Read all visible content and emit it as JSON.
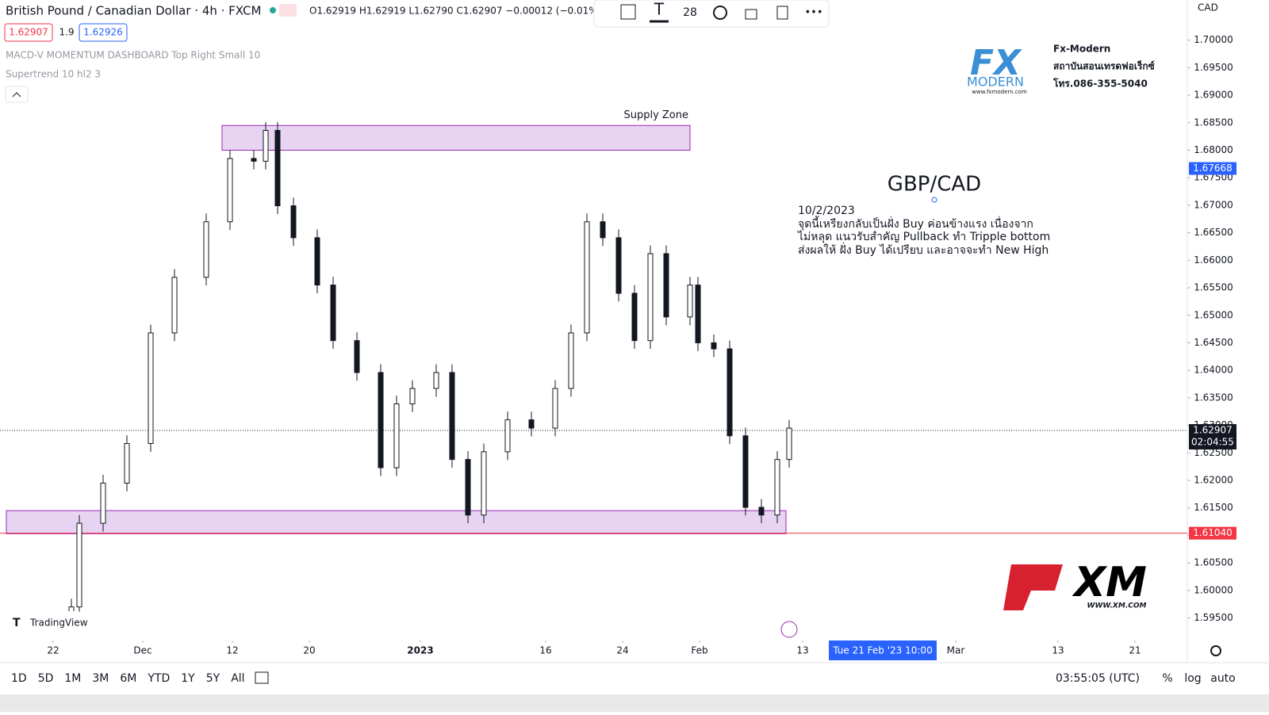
{
  "header": {
    "symbol": "British Pound / Canadian Dollar · 4h · FXCM",
    "ohlc": "O1.62919 H1.62919 L1.62790 C1.62907 −0.00012 (−0.01%)",
    "bid": "1.62907",
    "spread": "1.9",
    "ask": "1.62926",
    "currency": "CAD"
  },
  "toolbar": {
    "font_size": "28"
  },
  "indicators": [
    "MACD-V MOMENTUM DASHBOARD Top Right Small 10",
    "Supertrend 10 hl2 3"
  ],
  "logos": {
    "fx_name": "Fx-Modern",
    "fx_line1": "สถาบันสอนเทรดฟอเร็กซ์",
    "fx_line2": "โทร.086-355-5040",
    "fx_brand": "MODERN",
    "fx_site": "www.fxmodern.com",
    "xm": "XM",
    "xm_site": "WWW.XM.COM",
    "tradingview": "TradingView"
  },
  "annotation": {
    "title": "GBP/CAD",
    "lines": [
      "10/2/2023",
      "จุดนี้เหรียงกลับเป็นฝั่ง Buy ค่อนข้างแรง เนื่องจาก",
      "ไม่หลุด แนวรับสำคัญ Pullback ทำ Tripple bottom",
      "ส่งผลให้ ฝั่ง Buy ได้เปรียบ และอาจจะทำ New High"
    ]
  },
  "crosshair": "Tue 21 Feb '23 10:00",
  "bottom": {
    "ranges": [
      "1D",
      "5D",
      "1M",
      "3M",
      "6M",
      "YTD",
      "1Y",
      "5Y",
      "All"
    ],
    "clock": "03:55:05 (UTC)",
    "percent": "%",
    "log": "log",
    "auto": "auto"
  },
  "chart_data": {
    "type": "candlestick",
    "xlim": [
      0,
      149.7
    ],
    "ylim": [
      1.5909,
      1.7073
    ],
    "grid": false,
    "xticks": [
      {
        "value": 6.7,
        "label": "22"
      },
      {
        "value": 18,
        "label": "Dec"
      },
      {
        "value": 29.3,
        "label": "12"
      },
      {
        "value": 39,
        "label": "20"
      },
      {
        "value": 53,
        "label": "2023"
      },
      {
        "value": 68.8,
        "label": "16"
      },
      {
        "value": 78.5,
        "label": "24"
      },
      {
        "value": 88.2,
        "label": "Feb"
      },
      {
        "value": 101.2,
        "label": "13"
      },
      {
        "value": 120.5,
        "label": "Mar"
      },
      {
        "value": 133.4,
        "label": "13"
      },
      {
        "value": 143.1,
        "label": "21"
      }
    ],
    "yticks": [
      {
        "value": 1.7,
        "label": "1.70000"
      },
      {
        "value": 1.695,
        "label": "1.69500"
      },
      {
        "value": 1.69,
        "label": "1.69000"
      },
      {
        "value": 1.685,
        "label": "1.68500"
      },
      {
        "value": 1.68,
        "label": "1.68000"
      },
      {
        "value": 1.675,
        "label": "1.67500"
      },
      {
        "value": 1.67,
        "label": "1.67000"
      },
      {
        "value": 1.665,
        "label": "1.66500"
      },
      {
        "value": 1.66,
        "label": "1.66000"
      },
      {
        "value": 1.655,
        "label": "1.65500"
      },
      {
        "value": 1.65,
        "label": "1.65000"
      },
      {
        "value": 1.645,
        "label": "1.64500"
      },
      {
        "value": 1.64,
        "label": "1.64000"
      },
      {
        "value": 1.635,
        "label": "1.63500"
      },
      {
        "value": 1.63,
        "label": "1.63000"
      },
      {
        "value": 1.625,
        "label": "1.62500"
      },
      {
        "value": 1.62,
        "label": "1.62000"
      },
      {
        "value": 1.615,
        "label": "1.61500"
      },
      {
        "value": 1.61,
        "label": "1.61000"
      },
      {
        "value": 1.605,
        "label": "1.60500"
      },
      {
        "value": 1.6,
        "label": "1.60000"
      },
      {
        "value": 1.595,
        "label": "1.59500"
      }
    ],
    "x": [
      9,
      10,
      13,
      16,
      19,
      22,
      26,
      29,
      32,
      33.5,
      35,
      37,
      40,
      42,
      45,
      48,
      50,
      52,
      55,
      57,
      59,
      61,
      64,
      67,
      70,
      72,
      74,
      76,
      78,
      80,
      82,
      84,
      87,
      88,
      90,
      92,
      94,
      96,
      98,
      99.5
    ],
    "open": [
      1.595,
      1.597,
      1.6122,
      1.6195,
      1.6267,
      1.6468,
      1.6569,
      1.667,
      1.6785,
      1.678,
      1.6836,
      1.6699,
      1.6641,
      1.6555,
      1.6454,
      1.6396,
      1.6223,
      1.6339,
      1.6367,
      1.6396,
      1.6238,
      1.6137,
      1.6252,
      1.631,
      1.6295,
      1.6367,
      1.6468,
      1.667,
      1.6641,
      1.654,
      1.6454,
      1.6612,
      1.6497,
      1.6555,
      1.645,
      1.6439,
      1.6281,
      1.6151,
      1.6137,
      1.6238
    ],
    "high": [
      1.5985,
      1.6137,
      1.621,
      1.6282,
      1.6483,
      1.6584,
      1.6685,
      1.68,
      1.68,
      1.6851,
      1.6851,
      1.6714,
      1.6656,
      1.657,
      1.6469,
      1.6411,
      1.6354,
      1.6382,
      1.6411,
      1.6411,
      1.6253,
      1.6267,
      1.6325,
      1.6325,
      1.6382,
      1.6483,
      1.6685,
      1.6685,
      1.6656,
      1.6555,
      1.6627,
      1.6627,
      1.657,
      1.657,
      1.6465,
      1.6454,
      1.6296,
      1.6166,
      1.6253,
      1.631
    ],
    "low": [
      1.5935,
      1.5955,
      1.6107,
      1.618,
      1.6252,
      1.6453,
      1.6554,
      1.6655,
      1.6765,
      1.6765,
      1.6684,
      1.6626,
      1.654,
      1.6439,
      1.6381,
      1.6208,
      1.6208,
      1.6324,
      1.6352,
      1.6223,
      1.6122,
      1.6122,
      1.6237,
      1.628,
      1.628,
      1.6352,
      1.6453,
      1.6626,
      1.6525,
      1.6439,
      1.6439,
      1.6482,
      1.6482,
      1.6435,
      1.6424,
      1.6266,
      1.6136,
      1.6122,
      1.6122,
      1.6223
    ],
    "close": [
      1.597,
      1.6122,
      1.6195,
      1.6267,
      1.6468,
      1.6569,
      1.667,
      1.6785,
      1.678,
      1.6836,
      1.6699,
      1.6641,
      1.6555,
      1.6454,
      1.6396,
      1.6223,
      1.6339,
      1.6367,
      1.6396,
      1.6238,
      1.6137,
      1.6252,
      1.631,
      1.6295,
      1.6367,
      1.6468,
      1.667,
      1.6641,
      1.654,
      1.6454,
      1.6612,
      1.6497,
      1.6555,
      1.645,
      1.6439,
      1.6281,
      1.6151,
      1.6137,
      1.6238,
      1.6295
    ],
    "zones": [
      {
        "label": "Supply Zone",
        "xlim": [
          28,
          87
        ],
        "ylim": [
          1.68,
          1.6845
        ],
        "color": "#e1c8ef"
      },
      {
        "xlim": [
          0.8,
          99.1
        ],
        "ylim": [
          1.6103,
          1.6145
        ],
        "color": "#e1c8ef"
      }
    ],
    "price_markers": [
      {
        "value": 1.67668,
        "label": "1.67668",
        "color": "#2962ff"
      },
      {
        "value": 1.62907,
        "label": "1.62907",
        "color": "#131722",
        "countdown": "02:04:55"
      },
      {
        "value": 1.6104,
        "label": "1.61040",
        "color": "#f23645"
      }
    ]
  }
}
